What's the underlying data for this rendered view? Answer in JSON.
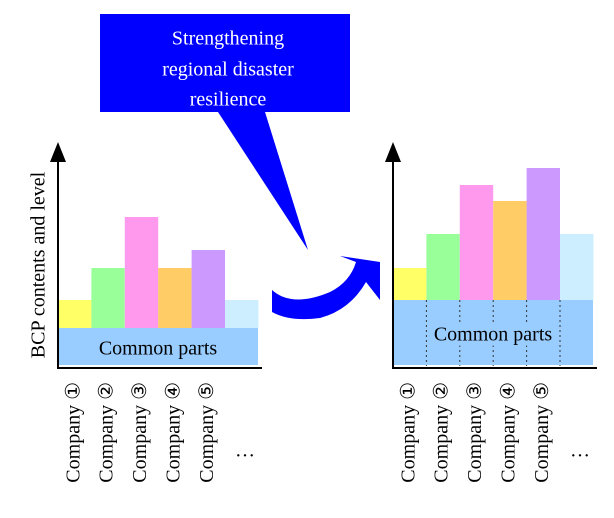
{
  "callout": {
    "lines": [
      "Strengthening",
      "regional disaster",
      "resilience"
    ]
  },
  "y_axis_label": "BCP contents and level",
  "panels": [
    {
      "common_label": "Common parts",
      "companies": [
        "Company ①",
        "Company ②",
        "Company ③",
        "Company ④",
        "Company ⑤"
      ],
      "ellipsis": "…"
    },
    {
      "common_label": "Common parts",
      "companies": [
        "Company ①",
        "Company ②",
        "Company ③",
        "Company ④",
        "Company ⑤"
      ],
      "ellipsis": "…"
    }
  ]
}
